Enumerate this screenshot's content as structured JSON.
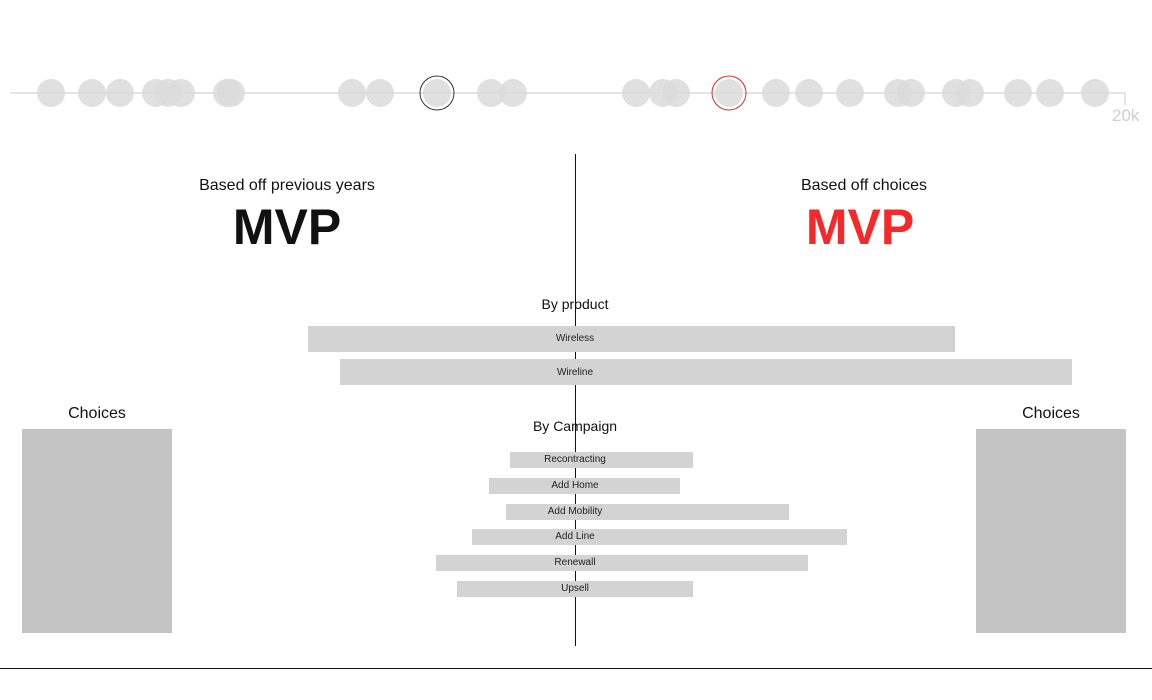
{
  "timeline": {
    "max_label": "20k",
    "dot_color": "#dadada",
    "line_color": "#c8c8c8",
    "markers": [
      {
        "name": "previous-years-marker",
        "color": "#333333"
      },
      {
        "name": "choices-marker",
        "color": "#e02a2a"
      }
    ]
  },
  "left_panel": {
    "label": "Based off previous years",
    "result": "MVP",
    "result_color": "#111111"
  },
  "right_panel": {
    "label": "Based off choices",
    "result": "MVP",
    "result_color": "#f42a2a"
  },
  "by_product": {
    "title": "By product",
    "items": [
      {
        "label": "Wireless"
      },
      {
        "label": "Wireline"
      }
    ]
  },
  "by_campaign": {
    "title": "By Campaign",
    "items": [
      {
        "label": "Recontracting"
      },
      {
        "label": "Add Home"
      },
      {
        "label": "Add Mobility"
      },
      {
        "label": "Add Line"
      },
      {
        "label": "Renewall"
      },
      {
        "label": "Upsell"
      }
    ]
  },
  "choices_left": {
    "title": "Choices"
  },
  "choices_right": {
    "title": "Choices"
  },
  "colors": {
    "bar": "#d3d3d3",
    "choices_box": "#c4c4c4",
    "accent_red": "#f42a2a"
  }
}
